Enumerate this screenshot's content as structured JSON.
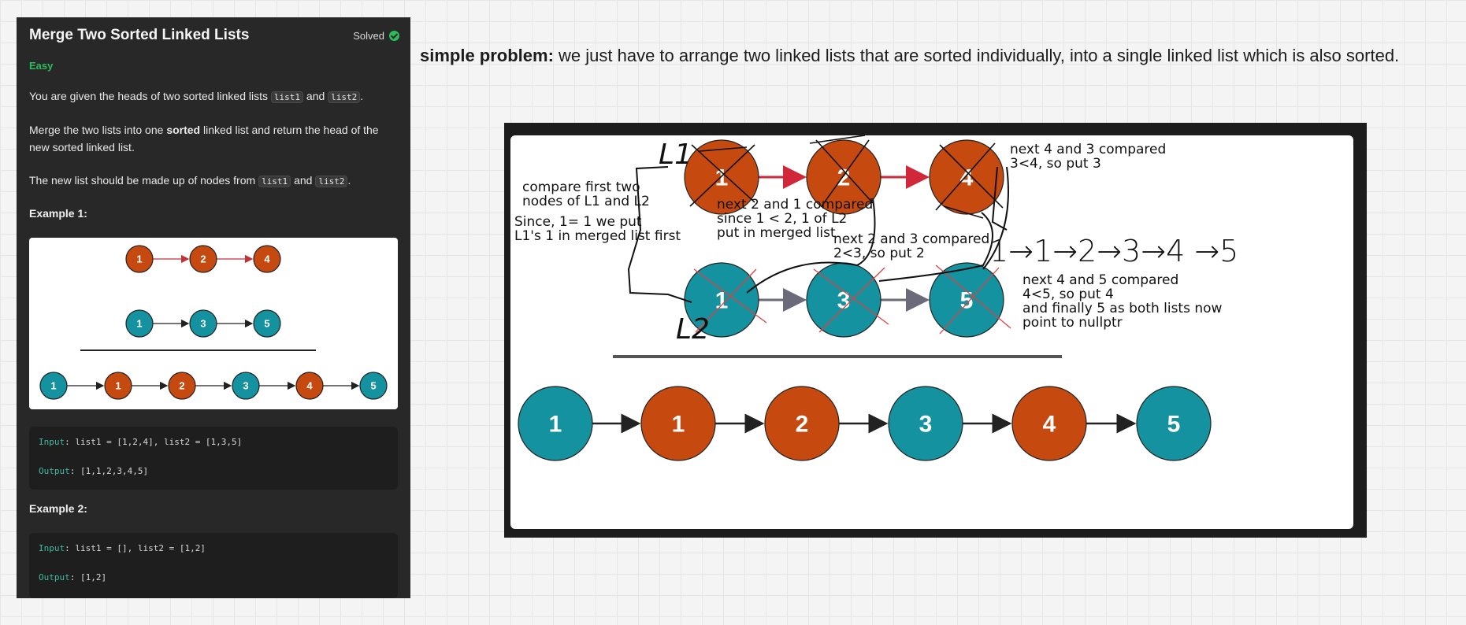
{
  "problem": {
    "title": "Merge Two Sorted Linked Lists",
    "status": "Solved",
    "difficulty": "Easy",
    "p1": {
      "pre": "You are given the heads of two sorted linked lists ",
      "c1": "list1",
      "mid": " and ",
      "c2": "list2",
      "post": "."
    },
    "p2": {
      "pre": "Merge the two lists into one ",
      "bold": "sorted",
      "post": " linked list and return the head of the new sorted linked list."
    },
    "p3": {
      "pre": "The new list should be made up of nodes from ",
      "c1": "list1",
      "mid": " and ",
      "c2": "list2",
      "post": "."
    },
    "example1": {
      "heading": "Example 1:",
      "list1": [
        "1",
        "2",
        "4"
      ],
      "list2": [
        "1",
        "3",
        "5"
      ],
      "merged": [
        "1",
        "1",
        "2",
        "3",
        "4",
        "5"
      ],
      "input_label": "Input",
      "input_value": ": list1 = [1,2,4], list2 = [1,3,5]",
      "output_label": "Output",
      "output_value": ": [1,1,2,3,4,5]"
    },
    "example2": {
      "heading": "Example 2:",
      "input_label": "Input",
      "input_value": ": list1 = [], list2 = [1,2]",
      "output_label": "Output",
      "output_value": ": [1,2]"
    }
  },
  "headline": {
    "bold": "simple problem:",
    "text": " we just have to arrange two linked lists that are sorted individually, into a single linked list which is also sorted."
  },
  "diagram": {
    "list1": [
      "1",
      "2",
      "4"
    ],
    "list2": [
      "1",
      "3",
      "5"
    ],
    "merged": [
      "1",
      "1",
      "2",
      "3",
      "4",
      "5"
    ],
    "handwritten_l1": "L1",
    "handwritten_l2": "L2",
    "handwritten_sequence": "1→1→2→3→4 →5",
    "note_compare_first": [
      "compare first two",
      "nodes of L1 and L2"
    ],
    "note_since": [
      "Since, 1= 1 we put",
      "L1's 1 in merged list first"
    ],
    "note_next_2_1": [
      "next 2 and 1 compared",
      "since 1 < 2, 1 of L2",
      "put in merged list"
    ],
    "note_next_2_3": [
      "next 2 and 3 compared",
      "2<3, so put 2"
    ],
    "note_next_4_3": [
      "next 4 and 3 compared",
      "3<4, so put 3"
    ],
    "note_next_4_5": [
      "next 4 and 5 compared",
      " 4<5, so put 4",
      " and finally 5 as both lists now",
      " point to nullptr"
    ]
  },
  "colors": {
    "orange_node": "#c64a0f",
    "teal_node": "#14929f",
    "accent_green": "#2cbb5d",
    "panel_bg": "#282828"
  }
}
